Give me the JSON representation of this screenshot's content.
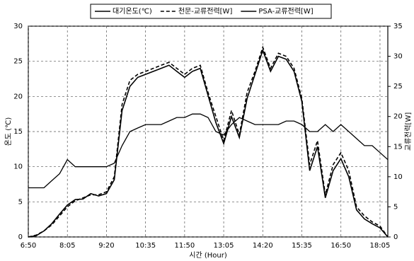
{
  "chart_data": {
    "type": "line",
    "x_label": "시간 (Hour)",
    "y_label": "온도 (℃)",
    "y2_label": "교류전력[W]",
    "x": [
      410,
      425,
      440,
      455,
      470,
      485,
      500,
      515,
      530,
      545,
      560,
      575,
      590,
      605,
      620,
      635,
      650,
      665,
      680,
      695,
      710,
      725,
      740,
      755,
      770,
      785,
      800,
      815,
      830,
      845,
      860,
      875,
      890,
      905,
      920,
      935,
      950,
      965,
      980,
      995,
      1010,
      1025,
      1040,
      1055,
      1070,
      1085,
      1100
    ],
    "xlim": [
      410,
      1100
    ],
    "xticks": [
      {
        "value": 410,
        "label": "6:50"
      },
      {
        "value": 485,
        "label": "8:05"
      },
      {
        "value": 560,
        "label": "9:20"
      },
      {
        "value": 635,
        "label": "10:35"
      },
      {
        "value": 710,
        "label": "11:50"
      },
      {
        "value": 785,
        "label": "13:05"
      },
      {
        "value": 860,
        "label": "14:20"
      },
      {
        "value": 935,
        "label": "15:35"
      },
      {
        "value": 1010,
        "label": "16:50"
      },
      {
        "value": 1085,
        "label": "18:05"
      }
    ],
    "ylim": [
      0,
      30
    ],
    "yticks": [
      0,
      5,
      10,
      15,
      20,
      25,
      30
    ],
    "y2lim": [
      0,
      35
    ],
    "y2ticks": [
      0,
      5,
      10,
      15,
      20,
      25,
      30,
      35
    ],
    "grid": true,
    "series": [
      {
        "name": "대기온도(℃)",
        "color": "#000000",
        "linestyle": "solid",
        "axis": "y",
        "values": [
          7,
          7,
          7,
          8,
          9,
          11,
          10,
          10,
          10,
          10,
          10,
          10.5,
          13,
          15,
          15.5,
          16,
          16,
          16,
          16.5,
          17,
          17,
          17.5,
          17.5,
          17,
          15,
          14.5,
          16,
          17,
          16.5,
          16,
          16,
          16,
          16,
          16.5,
          16.5,
          16,
          15,
          15,
          16,
          15,
          16,
          15,
          14,
          13,
          13,
          12,
          11
        ]
      },
      {
        "name": "천문-교류전력[W]",
        "color": "#000000",
        "linestyle": "dashed",
        "axis": "y2",
        "values": [
          0,
          0.3,
          1,
          2,
          3.5,
          5,
          6,
          6.5,
          7,
          7,
          7.5,
          10,
          22,
          26,
          27,
          27.5,
          28,
          28.5,
          29,
          28,
          27,
          28,
          28.5,
          24,
          20,
          16,
          21,
          17,
          24,
          27.5,
          31.5,
          28,
          30.5,
          30,
          28,
          23,
          12,
          16,
          7,
          12,
          14,
          11,
          5,
          3.5,
          2.5,
          1.8,
          0
        ]
      },
      {
        "name": "PSA-교류전력[W]",
        "color": "#000000",
        "linestyle": "solid",
        "axis": "y2",
        "values": [
          0,
          0.2,
          1,
          2.2,
          3.8,
          5.3,
          6.2,
          6.3,
          7.2,
          6.8,
          7.2,
          9.5,
          21,
          25,
          26.5,
          27,
          27.5,
          28,
          28.5,
          27.5,
          26.5,
          27.5,
          28,
          23.5,
          19,
          15.5,
          20,
          16.5,
          23,
          27,
          31,
          27.5,
          30,
          29.5,
          27.5,
          22.5,
          11,
          15,
          6.5,
          11,
          13,
          10,
          4.5,
          3,
          2.2,
          1.5,
          0
        ]
      }
    ]
  }
}
